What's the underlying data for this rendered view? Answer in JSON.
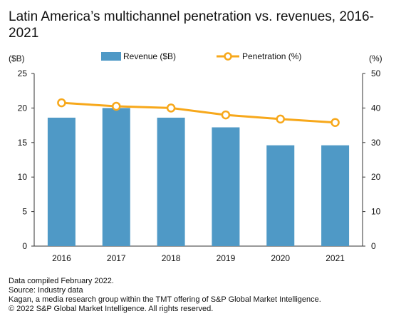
{
  "title": "Latin America’s multichannel penetration vs. revenues, 2016-2021",
  "chart_data": {
    "type": "bar",
    "title": "Latin America’s multichannel penetration vs. revenues, 2016-2021",
    "categories": [
      "2016",
      "2017",
      "2018",
      "2019",
      "2020",
      "2021"
    ],
    "series": [
      {
        "name": "Revenue ($B)",
        "type": "bar",
        "axis": "left",
        "values": [
          18.6,
          20.0,
          18.6,
          17.2,
          14.6,
          14.6
        ]
      },
      {
        "name": "Penetration (%)",
        "type": "line",
        "axis": "right",
        "values": [
          41.5,
          40.5,
          40.0,
          38.0,
          36.8,
          35.8
        ]
      }
    ],
    "y_left": {
      "unit_label": "($B)",
      "ylim": [
        0,
        25
      ],
      "ticks": [
        "0",
        "5",
        "10",
        "15",
        "20",
        "25"
      ]
    },
    "y_right": {
      "unit_label": "(%)",
      "ylim": [
        0,
        50
      ],
      "ticks": [
        "0",
        "10",
        "20",
        "30",
        "40",
        "50"
      ]
    },
    "legend_position": "top",
    "grid": false,
    "colors": {
      "bar": "#4f99c6",
      "line": "#f7a81b",
      "marker_fill": "#ffffff"
    }
  },
  "footer": {
    "line1": "Data compiled February 2022.",
    "line2": "Source: Industry data",
    "line3": "Kagan, a media research group within the TMT offering of S&P Global Market Intelligence.",
    "line4": "© 2022 S&P Global Market Intelligence. All rights reserved."
  }
}
